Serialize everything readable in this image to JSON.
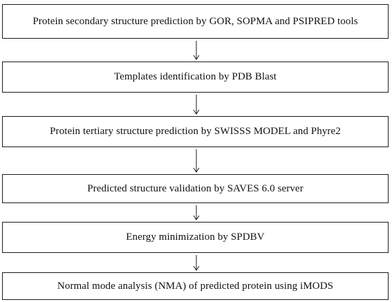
{
  "steps": [
    {
      "label": "Protein secondary structure prediction by GOR, SOPMA and PSIPRED tools"
    },
    {
      "label": "Templates identification by PDB Blast"
    },
    {
      "label": "Protein tertiary structure prediction by SWISSS MODEL and Phyre2"
    },
    {
      "label": "Predicted structure validation by SAVES 6.0 server"
    },
    {
      "label": "Energy minimization by SPDBV"
    },
    {
      "label": "Normal mode analysis (NMA) of predicted protein using iMODS"
    }
  ],
  "colors": {
    "border": "#1a1a1a",
    "text": "#111111",
    "background": "#ffffff"
  }
}
